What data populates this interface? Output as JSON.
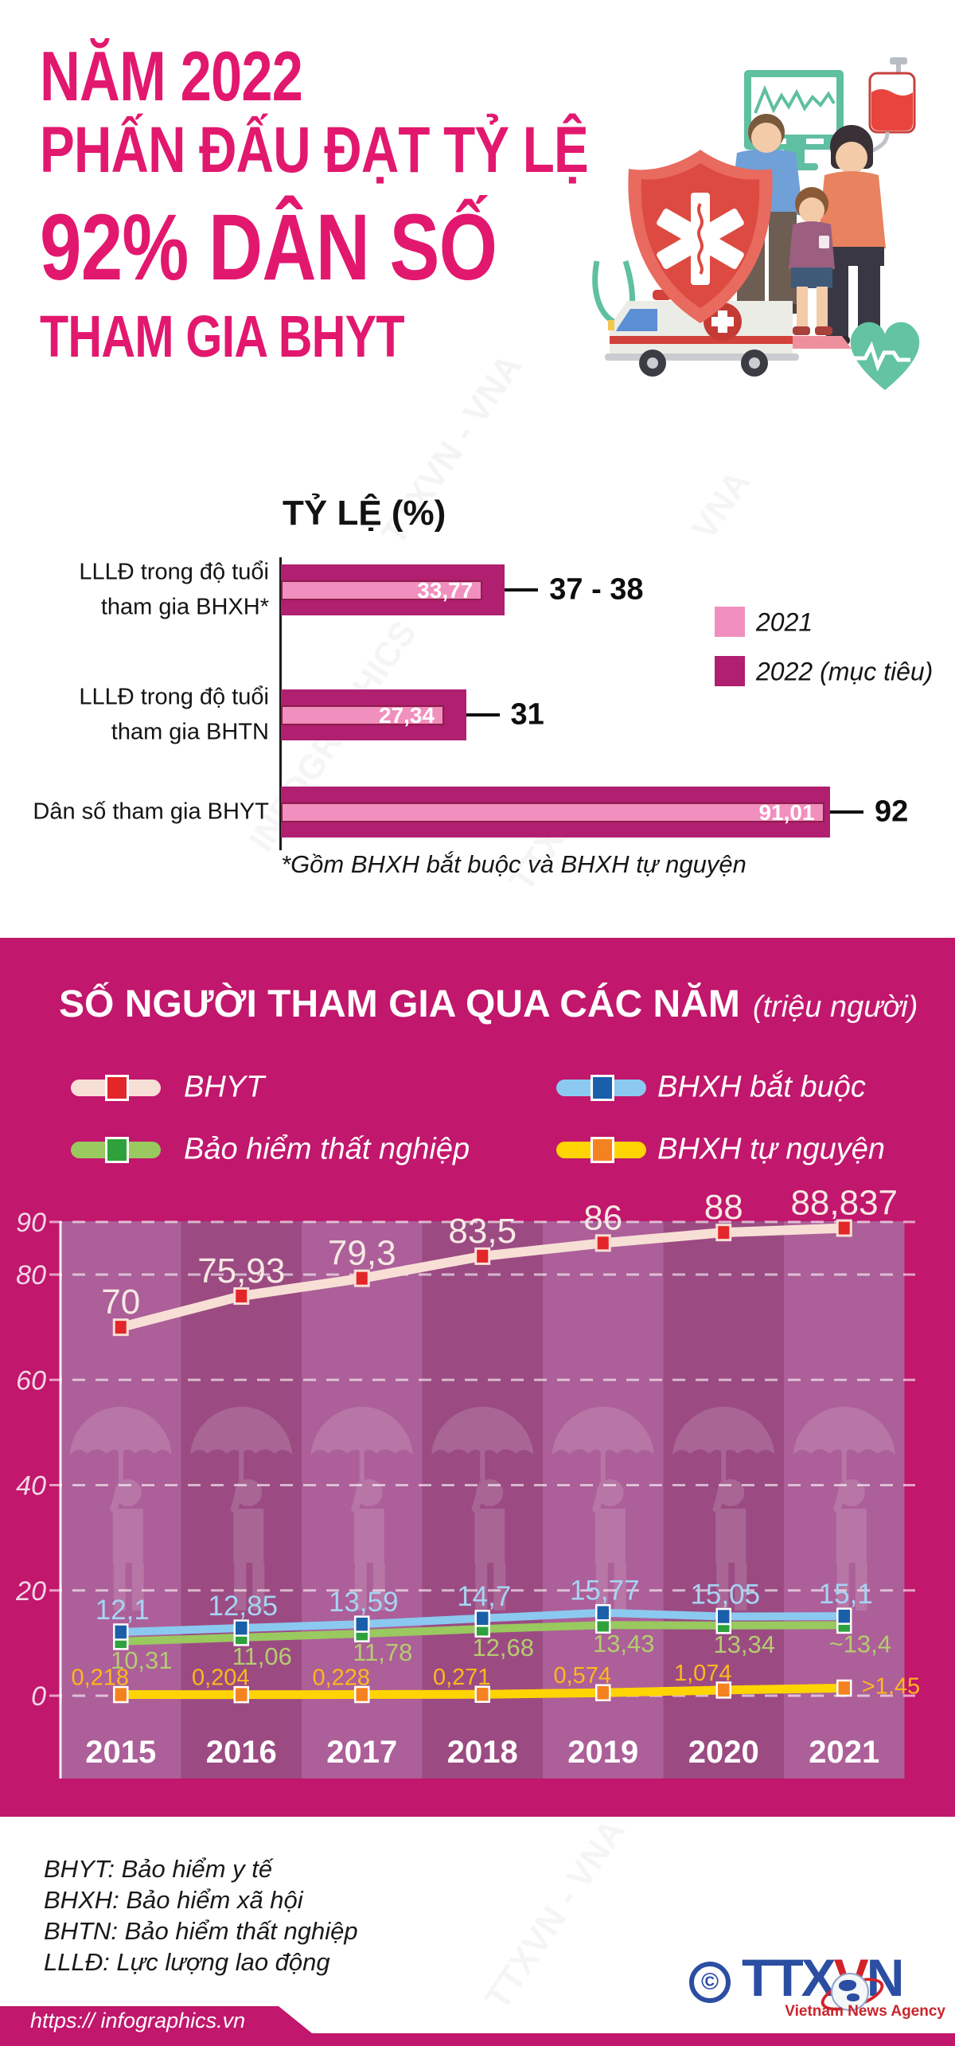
{
  "colors": {
    "accent": "#E2186F",
    "section_bg": "#C1176C",
    "column_light": "#AC5F98",
    "column_dark": "#9B4B82",
    "bar_2021": "#F18FBE",
    "bar_2021_border": "#8E1D4B",
    "bar_2022": "#B01F70",
    "logo_blue": "#2B4EA2",
    "logo_red": "#D2232A"
  },
  "header": {
    "title_lines": [
      "NĂM 2022",
      "PHẤN ĐẤU ĐẠT TỶ LỆ",
      "92% DÂN SỐ",
      "THAM GIA BHYT"
    ],
    "illustration": {
      "icons": [
        "ecg-monitor",
        "blood-bag",
        "medical-shield",
        "family-figures",
        "ambulance",
        "stethoscope",
        "heartbeat-heart"
      ]
    }
  },
  "chart_data": [
    {
      "type": "bar",
      "orientation": "horizontal",
      "title": "TỶ LỆ (%)",
      "xlim": [
        0,
        100
      ],
      "categories": [
        {
          "lines": [
            "LLLĐ trong độ tuổi",
            "tham gia BHXH*"
          ]
        },
        {
          "lines": [
            "LLLĐ trong độ tuổi",
            "tham gia BHTN"
          ]
        },
        {
          "lines": [
            "Dân số tham gia BHYT"
          ]
        }
      ],
      "series": [
        {
          "name": "2021",
          "color": "#F18FBE",
          "values": [
            33.77,
            27.34,
            91.01
          ],
          "labels": [
            "33,77",
            "27,34",
            "91,01"
          ]
        },
        {
          "name": "2022 (mục tiêu)",
          "color": "#B01F70",
          "values": [
            37.5,
            31,
            92
          ],
          "labels": [
            "37 - 38",
            "31",
            "92"
          ]
        }
      ],
      "footnote": "*Gồm BHXH bắt buộc và BHXH tự nguyện"
    },
    {
      "type": "line",
      "title": "SỐ NGƯỜI THAM GIA QUA CÁC NĂM",
      "subtitle": "(triệu người)",
      "categories": [
        "2015",
        "2016",
        "2017",
        "2018",
        "2019",
        "2020",
        "2021"
      ],
      "ylim": [
        0,
        93
      ],
      "grid": true,
      "gridlines": [
        90,
        80,
        60,
        40,
        20,
        0
      ],
      "ytick_labels": [
        "90",
        "80",
        "60",
        "40",
        "20",
        "0"
      ],
      "legend_position": "top",
      "series": [
        {
          "name": "BHYT",
          "line": "#F8DFD6",
          "marker": "#E3262A",
          "label_color": "#F7E9E4",
          "values": [
            70,
            75.93,
            79.3,
            83.5,
            86,
            88,
            88.837
          ],
          "labels": [
            "70",
            "75,93",
            "79,3",
            "83,5",
            "86",
            "88",
            "88,837"
          ]
        },
        {
          "name": "BHXH bắt buộc",
          "line": "#8BC9F0",
          "marker": "#1A5FA9",
          "label_color": "#A6D4F4",
          "values": [
            12.1,
            12.85,
            13.59,
            14.7,
            15.77,
            15.05,
            15.1
          ],
          "labels": [
            "12,1",
            "12,85",
            "13,59",
            "14,7",
            "15,77",
            "15,05",
            "15,1"
          ]
        },
        {
          "name": "Bảo hiểm thất nghiệp",
          "line": "#99C95F",
          "marker": "#2FA13C",
          "label_color": "#B5CC70",
          "values": [
            10.31,
            11.06,
            11.78,
            12.68,
            13.43,
            13.34,
            13.4
          ],
          "labels": [
            "10,31",
            "11,06",
            "11,78",
            "12,68",
            "13,43",
            "13,34",
            "~13,4"
          ]
        },
        {
          "name": "BHXH tự nguyện",
          "line": "#FFD403",
          "marker": "#F58220",
          "label_color": "#FFB81C",
          "values": [
            0.218,
            0.204,
            0.228,
            0.271,
            0.574,
            1.074,
            1.45
          ],
          "labels": [
            "0,218",
            "0,204",
            "0,228",
            "0,271",
            "0,574",
            "1,074",
            ">1,45"
          ]
        }
      ]
    }
  ],
  "footer": {
    "abbreviations": [
      "BHYT: Bảo hiểm y tế",
      "BHXH: Bảo hiểm xã hội",
      "BHTN: Bảo hiểm thất nghiệp",
      "LLLĐ: Lực lượng lao động"
    ],
    "url": "https:// infographics.vn",
    "logo": {
      "copyright": "©",
      "brand_parts": [
        "TTX",
        "V",
        "N"
      ],
      "brand_sub": "Vietnam News Agency"
    }
  },
  "watermarks": [
    "TTXVN - VNA",
    "INFOGRAPHICS",
    "VNA",
    "TTXVN"
  ]
}
